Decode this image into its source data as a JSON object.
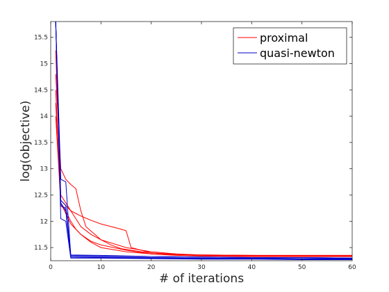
{
  "chart_data": {
    "type": "line",
    "title": "",
    "xlabel": "# of iterations",
    "ylabel": "log(objective)",
    "xlim": [
      0,
      60
    ],
    "ylim": [
      11.25,
      15.8
    ],
    "x_ticks": [
      0,
      10,
      20,
      30,
      40,
      50,
      60
    ],
    "y_ticks": [
      11.5,
      12,
      12.5,
      13,
      13.5,
      14,
      14.5,
      15,
      15.5
    ],
    "grid": false,
    "legend": {
      "position": "top-right",
      "entries": [
        {
          "label": "proximal",
          "color": "#ff0000"
        },
        {
          "label": "quasi-newton",
          "color": "#0000cc"
        }
      ]
    },
    "groups": [
      {
        "name": "proximal",
        "color": "#ff0000",
        "runs": [
          {
            "x": [
              1,
              2,
              3,
              4,
              5,
              6,
              8,
              10,
              12,
              14,
              16,
              18,
              20,
              25,
              30,
              40,
              50,
              60
            ],
            "y": [
              15.25,
              12.5,
              12.35,
              12.2,
              12.05,
              11.9,
              11.75,
              11.65,
              11.55,
              11.48,
              11.45,
              11.42,
              11.4,
              11.37,
              11.36,
              11.35,
              11.35,
              11.35
            ]
          },
          {
            "x": [
              1,
              2,
              3,
              4,
              5,
              6,
              8,
              10,
              12,
              14,
              15,
              16,
              18,
              20,
              25,
              30,
              40,
              50,
              60
            ],
            "y": [
              14.25,
              12.4,
              12.3,
              12.2,
              12.15,
              12.1,
              12.02,
              11.95,
              11.9,
              11.85,
              11.82,
              11.5,
              11.45,
              11.4,
              11.37,
              11.36,
              11.35,
              11.35,
              11.35
            ]
          },
          {
            "x": [
              1,
              2,
              3,
              4,
              5,
              6,
              7,
              10,
              15,
              20,
              25,
              30,
              40,
              50,
              60
            ],
            "y": [
              14.8,
              13.0,
              12.8,
              12.7,
              12.62,
              12.2,
              11.9,
              11.65,
              11.5,
              11.42,
              11.38,
              11.36,
              11.35,
              11.34,
              11.34
            ]
          },
          {
            "x": [
              1,
              2,
              3,
              4,
              5,
              6,
              8,
              10,
              15,
              20,
              25,
              30,
              40,
              50,
              60
            ],
            "y": [
              14.5,
              12.3,
              12.2,
              12.0,
              11.85,
              11.75,
              11.62,
              11.55,
              11.45,
              11.38,
              11.35,
              11.34,
              11.33,
              11.33,
              11.33
            ]
          },
          {
            "x": [
              1,
              2,
              3,
              4,
              6,
              8,
              10,
              15,
              20,
              30,
              40,
              50,
              60
            ],
            "y": [
              14.0,
              12.35,
              12.15,
              11.95,
              11.75,
              11.6,
              11.5,
              11.42,
              11.38,
              11.35,
              11.34,
              11.33,
              11.33
            ]
          }
        ]
      },
      {
        "name": "quasi-newton",
        "color": "#0000cc",
        "runs": [
          {
            "x": [
              1,
              2,
              3,
              4,
              10,
              20,
              30,
              40,
              50,
              60
            ],
            "y": [
              15.8,
              12.8,
              12.75,
              11.35,
              11.34,
              11.33,
              11.32,
              11.31,
              11.31,
              11.3
            ]
          },
          {
            "x": [
              1,
              2,
              3,
              4,
              10,
              20,
              30,
              40,
              50,
              60
            ],
            "y": [
              15.8,
              12.35,
              12.2,
              11.32,
              11.31,
              11.3,
              11.29,
              11.29,
              11.28,
              11.28
            ]
          },
          {
            "x": [
              1,
              2,
              3,
              4,
              10,
              20,
              30,
              40,
              50,
              60
            ],
            "y": [
              15.8,
              12.3,
              12.25,
              11.33,
              11.32,
              11.31,
              11.3,
              11.3,
              11.29,
              11.29
            ]
          },
          {
            "x": [
              1,
              2,
              3,
              4,
              10,
              20,
              30,
              40,
              50,
              60
            ],
            "y": [
              15.8,
              12.05,
              12.0,
              11.3,
              11.3,
              11.29,
              11.28,
              11.28,
              11.27,
              11.27
            ]
          },
          {
            "x": [
              1,
              2,
              3,
              4,
              10,
              20,
              30,
              40,
              50,
              60
            ],
            "y": [
              15.8,
              12.4,
              12.3,
              11.36,
              11.35,
              11.33,
              11.32,
              11.31,
              11.31,
              11.3
            ]
          }
        ]
      }
    ]
  }
}
